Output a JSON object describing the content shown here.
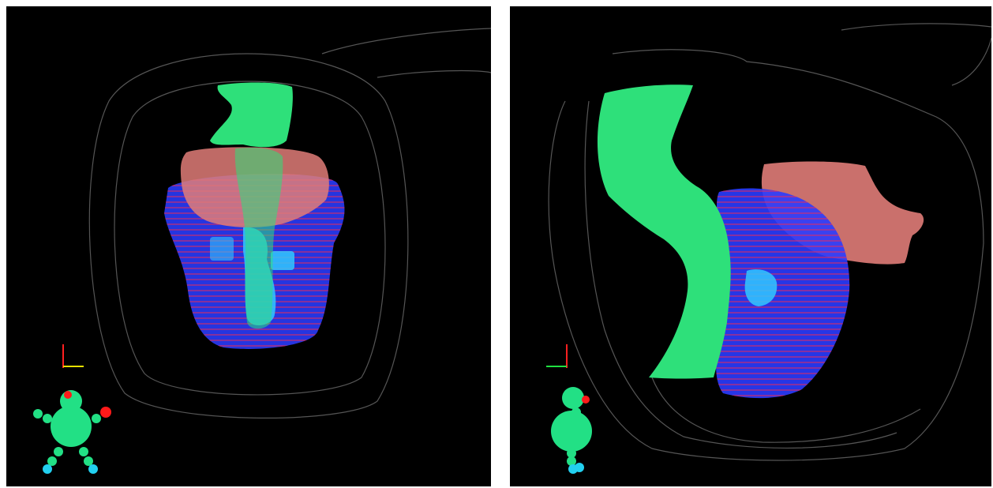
{
  "panels": [
    {
      "id": "left",
      "orientation": "frontal"
    },
    {
      "id": "right",
      "orientation": "sagittal"
    }
  ],
  "colors": {
    "background": "#000000",
    "divider": "#ffffff",
    "body_outline": "#555555",
    "green_structure": "#2ee07a",
    "pink_structure": "#e07c78",
    "blue_structure": "#2a3cff",
    "contour_lines": "#ff2a4a",
    "cyan_structure": "#33c8ff",
    "axis_red": "#ff2020",
    "axis_yellow": "#e8e000",
    "axis_green": "#20e040",
    "orientation_figure": "#22e085",
    "orientation_head_marker": "#ff1a1a",
    "orientation_feet": "#22d0f0"
  },
  "icons": [
    "orientation-figure-icon",
    "axis-triad-icon"
  ]
}
